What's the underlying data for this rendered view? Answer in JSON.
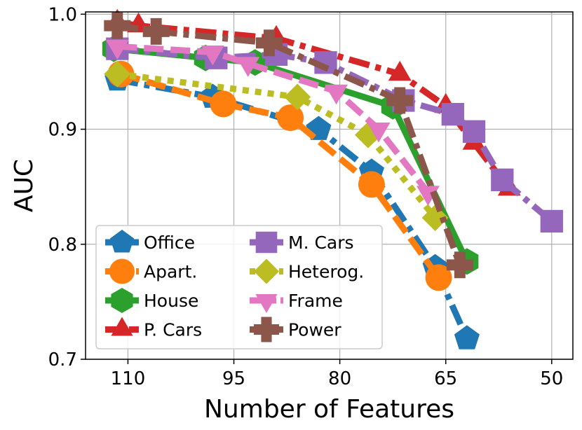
{
  "chart_data": {
    "type": "line",
    "xlabel": "Number of Features",
    "ylabel": "AUC",
    "xlim": [
      116,
      47
    ],
    "ylim": [
      0.7,
      1.002
    ],
    "x_ticks": [
      110,
      95,
      80,
      65,
      50
    ],
    "y_ticks": [
      0.7,
      0.8,
      0.9,
      1.0
    ],
    "x_tick_labels": [
      "110",
      "95",
      "80",
      "65",
      "50"
    ],
    "y_tick_labels": [
      "0.7",
      "0.8",
      "0.9",
      "1.0"
    ],
    "grid": true,
    "legend_placement": "lower-left",
    "legend_columns": 2,
    "series": [
      {
        "name": "Office",
        "color": "#1f77b4",
        "marker": "pentagon",
        "dash": "dashdot",
        "x": [
          111.5,
          98,
          83,
          75.5,
          66.5,
          62
        ],
        "y": [
          0.943,
          0.928,
          0.9,
          0.863,
          0.78,
          0.718
        ]
      },
      {
        "name": "Apart.",
        "color": "#ff7f0e",
        "marker": "circle",
        "dash": "dashed",
        "x": [
          111,
          96.5,
          87,
          75.5,
          66
        ],
        "y": [
          0.948,
          0.922,
          0.91,
          0.852,
          0.771
        ]
      },
      {
        "name": "House",
        "color": "#2ca02c",
        "marker": "hexagon",
        "dash": "solid",
        "x": [
          112,
          99,
          92,
          72.5,
          62
        ],
        "y": [
          0.97,
          0.962,
          0.958,
          0.92,
          0.785
        ]
      },
      {
        "name": "P. Cars",
        "color": "#d62728",
        "marker": "triangle-up",
        "dash": "dashdot",
        "x": [
          111.5,
          108.5,
          89,
          71.5,
          65,
          61,
          56
        ],
        "y": [
          0.993,
          0.99,
          0.979,
          0.948,
          0.92,
          0.888,
          0.848
        ]
      },
      {
        "name": "M. Cars",
        "color": "#9467bd",
        "marker": "square",
        "dash": "dashdot",
        "x": [
          111.5,
          97.5,
          89,
          82,
          71,
          64,
          61,
          57,
          50
        ],
        "y": [
          0.97,
          0.962,
          0.965,
          0.958,
          0.925,
          0.913,
          0.898,
          0.856,
          0.82
        ]
      },
      {
        "name": "Heterog.",
        "color": "#bcbd22",
        "marker": "diamond",
        "dash": "dotted",
        "x": [
          111.5,
          86,
          76,
          66.5
        ],
        "y": [
          0.948,
          0.928,
          0.895,
          0.823
        ]
      },
      {
        "name": "Frame",
        "color": "#e377c2",
        "marker": "triangle-down",
        "dash": "dashed",
        "x": [
          111.5,
          98,
          93,
          80.5,
          74.5,
          67.5
        ],
        "y": [
          0.972,
          0.967,
          0.957,
          0.933,
          0.9,
          0.845
        ]
      },
      {
        "name": "Power",
        "color": "#8c564b",
        "marker": "plus-filled",
        "dash": "dashdot",
        "x": [
          111.5,
          106,
          90,
          71.5,
          63
        ],
        "y": [
          0.99,
          0.985,
          0.975,
          0.925,
          0.782
        ]
      }
    ]
  }
}
